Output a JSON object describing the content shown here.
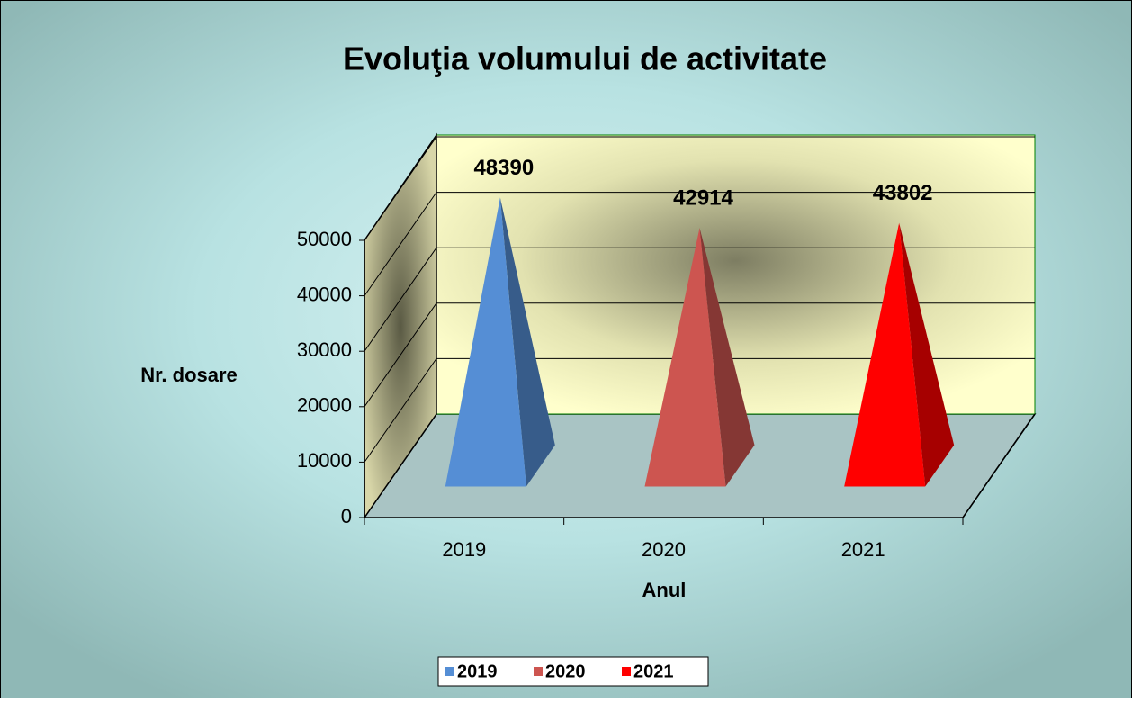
{
  "chart_data": {
    "type": "pyramid",
    "title": "Evoluţia volumului de activitate",
    "y_label": "Nr. dosare",
    "x_label": "Anul",
    "categories": [
      "2019",
      "2020",
      "2021"
    ],
    "values": [
      48390,
      42914,
      43802
    ],
    "colors": [
      "#558ed5",
      "#cd5550",
      "#ff0000"
    ],
    "ylim": [
      0,
      50000
    ],
    "yticks": [
      0,
      10000,
      20000,
      30000,
      40000,
      50000
    ],
    "grid": true,
    "legend": "bottom"
  }
}
